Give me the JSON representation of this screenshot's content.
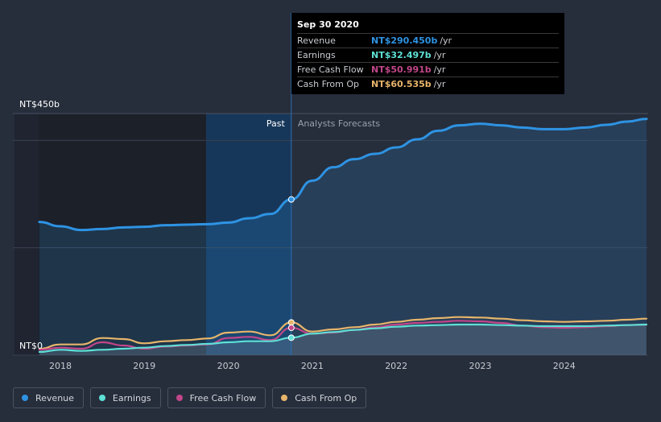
{
  "chart_data": {
    "type": "line",
    "currency": "NT$",
    "x": [
      2017.75,
      2018.0,
      2018.25,
      2018.5,
      2018.75,
      2019.0,
      2019.25,
      2019.5,
      2019.75,
      2020.0,
      2020.25,
      2020.5,
      2020.75,
      2021.0,
      2021.25,
      2021.5,
      2021.75,
      2022.0,
      2022.25,
      2022.5,
      2022.75,
      2023.0,
      2023.25,
      2023.5,
      2023.75,
      2024.0,
      2024.25,
      2024.5,
      2024.75,
      2024.98
    ],
    "series": [
      {
        "name": "Revenue",
        "color": "#2e93e3",
        "values": [
          248,
          240,
          233,
          235,
          238,
          239,
          242,
          243,
          244,
          247,
          255,
          263,
          290,
          325,
          350,
          365,
          375,
          387,
          402,
          418,
          428,
          431,
          428,
          424,
          421,
          421,
          424,
          429,
          435,
          440
        ]
      },
      {
        "name": "Earnings",
        "color": "#5ee0d6",
        "values": [
          6,
          10,
          8,
          10,
          12,
          14,
          17,
          19,
          21,
          24,
          26,
          26,
          32.5,
          40,
          43,
          47,
          50,
          53,
          55,
          56,
          57,
          57,
          56,
          55,
          54,
          54,
          54,
          55,
          56,
          57
        ]
      },
      {
        "name": "Free Cash Flow",
        "color": "#c2468a",
        "values": [
          10,
          14,
          12,
          24,
          18,
          12,
          16,
          18,
          20,
          32,
          34,
          28,
          51,
          40,
          42,
          47,
          52,
          57,
          60,
          62,
          64,
          63,
          60,
          55,
          52,
          51,
          52,
          54,
          56,
          57
        ]
      },
      {
        "name": "Cash From Op",
        "color": "#e7b56b",
        "values": [
          12,
          20,
          20,
          32,
          30,
          22,
          26,
          28,
          31,
          42,
          44,
          37,
          61,
          44,
          48,
          52,
          57,
          62,
          66,
          69,
          71,
          70,
          68,
          65,
          63,
          62,
          63,
          64,
          66,
          68
        ]
      }
    ],
    "ylim": [
      0,
      450
    ],
    "ytick_labels": [
      "NT$450b",
      "NT$0"
    ],
    "xticks": [
      2018,
      2019,
      2020,
      2021,
      2022,
      2023,
      2024
    ],
    "xtick_labels": [
      "2018",
      "2019",
      "2020",
      "2021",
      "2022",
      "2023",
      "2024"
    ],
    "highlight_x": 2020.75,
    "past_label": "Past",
    "forecast_label": "Analysts Forecasts",
    "grid": true
  },
  "tooltip": {
    "date": "Sep 30 2020",
    "rows": [
      {
        "label": "Revenue",
        "value": "NT$290.450b",
        "unit": "/yr",
        "color": "#2e93e3"
      },
      {
        "label": "Earnings",
        "value": "NT$32.497b",
        "unit": "/yr",
        "color": "#5ee0d6"
      },
      {
        "label": "Free Cash Flow",
        "value": "NT$50.991b",
        "unit": "/yr",
        "color": "#c2468a"
      },
      {
        "label": "Cash From Op",
        "value": "NT$60.535b",
        "unit": "/yr",
        "color": "#e7b56b"
      }
    ]
  },
  "legend": [
    {
      "label": "Revenue",
      "color": "#2e93e3"
    },
    {
      "label": "Earnings",
      "color": "#5ee0d6"
    },
    {
      "label": "Free Cash Flow",
      "color": "#c2468a"
    },
    {
      "label": "Cash From Op",
      "color": "#e7b56b"
    }
  ]
}
